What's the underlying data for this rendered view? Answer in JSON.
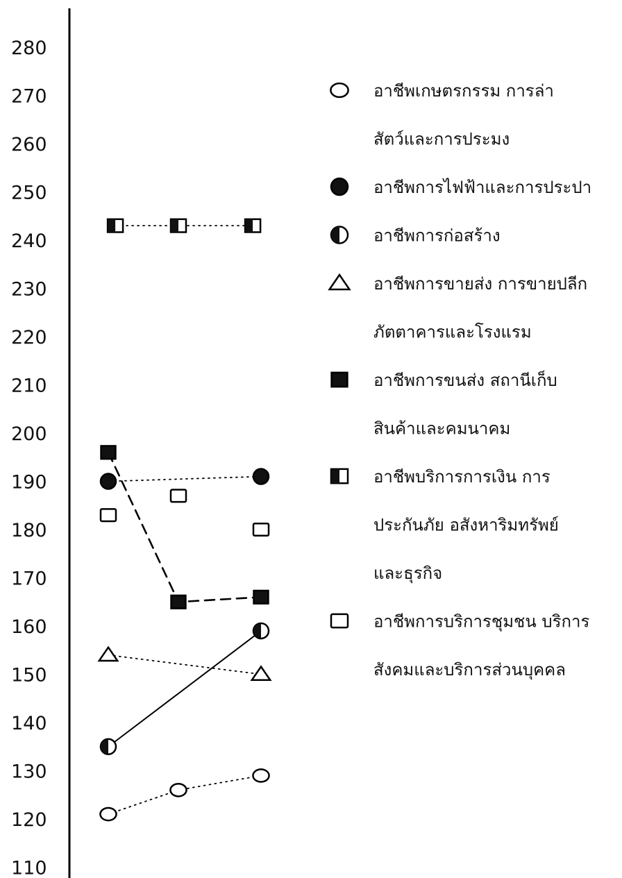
{
  "chart_data": {
    "type": "scatter",
    "title": "",
    "xlabel": "",
    "ylabel": "",
    "ylim": [
      110,
      280
    ],
    "yticks": [
      280,
      270,
      260,
      250,
      240,
      230,
      220,
      210,
      200,
      190,
      180,
      170,
      160,
      150,
      140,
      130,
      120,
      110
    ],
    "grid": false,
    "legend_position": "right",
    "series": [
      {
        "key": "agriculture",
        "name": "อาชีพเกษตรกรรม การล่าสัตว์และการประมง",
        "legend_lines": [
          "อาชีพเกษตรกรรม การล่า",
          "สัตว์และการประมง"
        ],
        "marker": "circle-open",
        "line": "dotted",
        "points": [
          {
            "x": 1,
            "y": 121
          },
          {
            "x": 2,
            "y": 126
          },
          {
            "x": 3,
            "y": 129
          }
        ]
      },
      {
        "key": "utilities",
        "name": "อาชีพการไฟฟ้าและการประปา",
        "legend_lines": [
          "อาชีพการไฟฟ้าและการประปา"
        ],
        "marker": "circle-filled",
        "line": "dotted",
        "points": [
          {
            "x": 1,
            "y": 190
          },
          {
            "x": 3,
            "y": 191
          }
        ]
      },
      {
        "key": "construction",
        "name": "อาชีพการก่อสร้าง",
        "legend_lines": [
          "อาชีพการก่อสร้าง"
        ],
        "marker": "circle-half",
        "line": "solid",
        "points": [
          {
            "x": 1,
            "y": 135
          },
          {
            "x": 3,
            "y": 159
          }
        ]
      },
      {
        "key": "trade",
        "name": "อาชีพการขายส่ง การขายปลีก ภัตตาคารและโรงแรม",
        "legend_lines": [
          "อาชีพการขายส่ง การขายปลีก",
          "ภัตตาคารและโรงแรม"
        ],
        "marker": "triangle-open",
        "line": "dotted",
        "points": [
          {
            "x": 1,
            "y": 154
          },
          {
            "x": 3,
            "y": 150
          }
        ]
      },
      {
        "key": "transport",
        "name": "อาชีพการขนส่ง สถานีเก็บสินค้าและคมนาคม",
        "legend_lines": [
          "อาชีพการขนส่ง สถานีเก็บ",
          "สินค้าและคมนาคม"
        ],
        "marker": "square-filled",
        "line": "dashed",
        "points": [
          {
            "x": 1,
            "y": 196
          },
          {
            "x": 2,
            "y": 165
          },
          {
            "x": 3,
            "y": 166
          }
        ]
      },
      {
        "key": "finance",
        "name": "อาชีพบริการการเงิน การประกันภัย อสังหาริมทรัพย์และธุรกิจ",
        "legend_lines": [
          "อาชีพบริการการเงิน การ",
          "ประกันภัย อสังหาริมทรัพย์",
          "และธุรกิจ"
        ],
        "marker": "square-half",
        "line": "dotted",
        "points": [
          {
            "x": 1.1,
            "y": 243
          },
          {
            "x": 2,
            "y": 243
          },
          {
            "x": 2.9,
            "y": 243
          }
        ]
      },
      {
        "key": "services",
        "name": "อาชีพการบริการชุมชน บริการสังคมและบริการส่วนบุคคล",
        "legend_lines": [
          "อาชีพการบริการชุมชน บริการ",
          "สังคมและบริการส่วนบุคคล"
        ],
        "marker": "square-open",
        "line": "none",
        "points": [
          {
            "x": 1,
            "y": 183
          },
          {
            "x": 2,
            "y": 187
          },
          {
            "x": 3,
            "y": 180
          }
        ]
      }
    ]
  }
}
